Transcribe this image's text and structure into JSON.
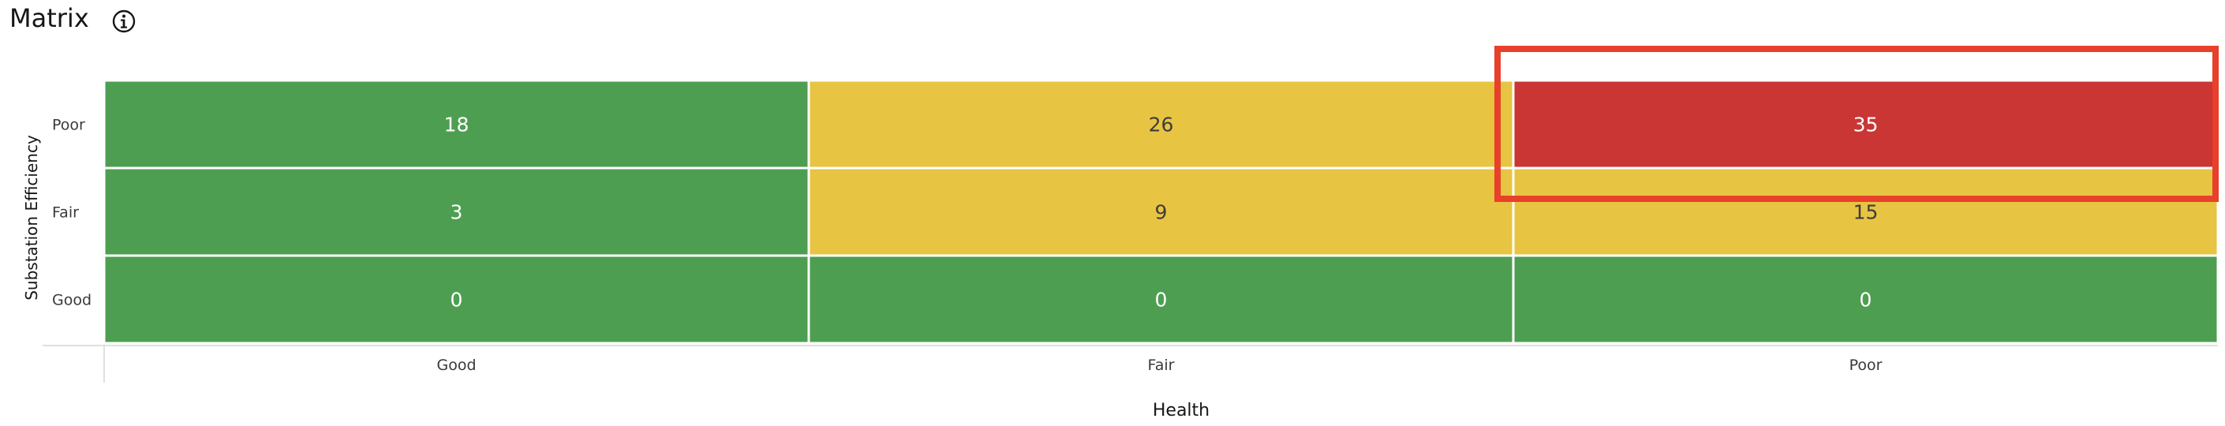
{
  "page": {
    "title": "Matrix"
  },
  "icons": {
    "info": "info-icon"
  },
  "colors": {
    "good": "#4e9e52",
    "fair": "#e8c443",
    "poor": "#c93634",
    "highlight": "#e8402a"
  },
  "chart_data": {
    "type": "heatmap",
    "title": "",
    "xlabel": "Health",
    "ylabel": "Substation Efficiency",
    "x_categories": [
      "Good",
      "Fair",
      "Poor"
    ],
    "y_categories": [
      "Poor",
      "Fair",
      "Good"
    ],
    "values": [
      [
        18,
        26,
        35
      ],
      [
        3,
        9,
        15
      ],
      [
        0,
        0,
        0
      ]
    ],
    "cell_status": [
      [
        "good",
        "fair",
        "poor"
      ],
      [
        "good",
        "fair",
        "fair"
      ],
      [
        "good",
        "good",
        "good"
      ]
    ],
    "highlighted_cell": {
      "x": "Poor",
      "y": "Poor"
    }
  }
}
